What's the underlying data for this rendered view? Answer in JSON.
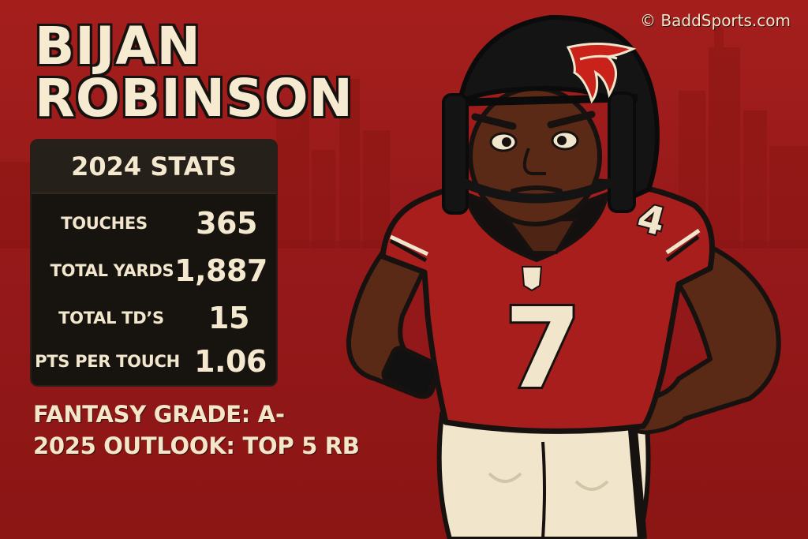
{
  "player": {
    "first_name": "BIJAN",
    "last_name": "ROBINSON",
    "jersey_number": "7",
    "sleeve_number": "4",
    "helmet_logo": "falcon-icon",
    "collar_logo": "nfl-shield-icon"
  },
  "credit": "© BaddSports.com",
  "stats": {
    "header": "2024 STATS",
    "rows": [
      {
        "label": "TOUCHES",
        "value": "365"
      },
      {
        "label": "TOTAL YARDS",
        "value": "1,887"
      },
      {
        "label": "TOTAL TD’S",
        "value": "15"
      },
      {
        "label": "PTS PER TOUCH",
        "value": "1.06"
      }
    ]
  },
  "fantasy_grade": "FANTASY GRADE: A-",
  "outlook": "2025 OUTLOOK: TOP 5 RB",
  "colors": {
    "background": "#a41f1c",
    "panel": "#17130f",
    "cream_text": "#f4e8cf",
    "jersey_red": "#a81e1c",
    "helmet_black": "#141414",
    "pants_cream": "#f1e6cc"
  }
}
